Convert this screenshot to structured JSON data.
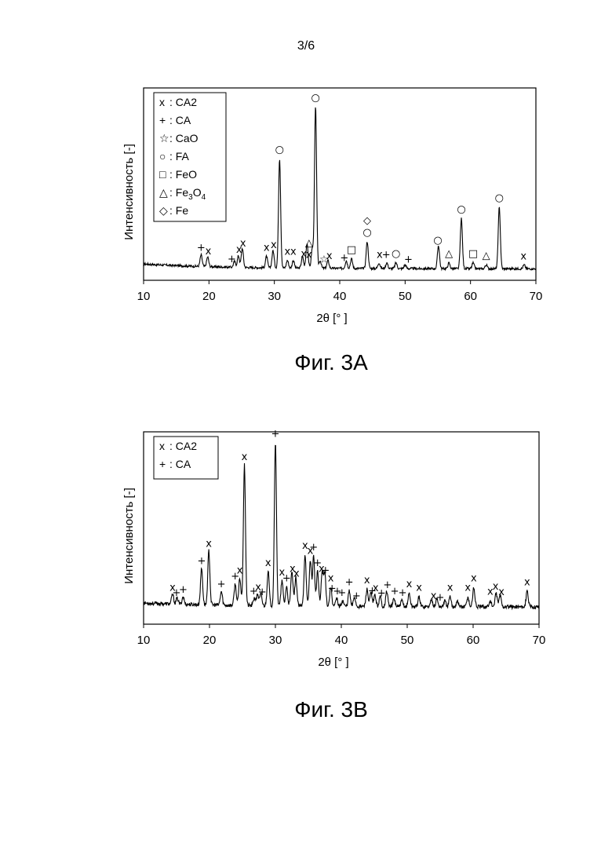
{
  "page": {
    "number": "3/6"
  },
  "figures": [
    {
      "caption": "Фиг. 3A"
    },
    {
      "caption": "Фиг. 3B"
    }
  ],
  "chart_data": [
    {
      "type": "line",
      "title": "",
      "xlabel": "2θ [°  ]",
      "ylabel": "Интенсивность  [-]",
      "xlim": [
        10,
        70
      ],
      "ylim": [
        0,
        100
      ],
      "xticks": [
        10,
        20,
        30,
        40,
        50,
        60,
        70
      ],
      "legend_position": "top-left",
      "legend": [
        {
          "symbol": "x",
          "label": "CA2"
        },
        {
          "symbol": "+",
          "label": "CA"
        },
        {
          "symbol": "☆",
          "label": "CaO"
        },
        {
          "symbol": "○",
          "label": "FA"
        },
        {
          "symbol": "□",
          "label": "FeO"
        },
        {
          "symbol": "△",
          "label": "Fe3O4",
          "label_main": "Fe",
          "sub1": "3",
          "mid": "O",
          "sub2": "4"
        },
        {
          "symbol": "◇",
          "label": "Fe"
        }
      ],
      "baseline": 6,
      "peaks": [
        [
          18.8,
          6
        ],
        [
          19.8,
          5
        ],
        [
          23.9,
          3
        ],
        [
          24.5,
          6
        ],
        [
          25.1,
          10
        ],
        [
          28.8,
          6
        ],
        [
          29.8,
          9
        ],
        [
          30.8,
          57
        ],
        [
          32.0,
          4
        ],
        [
          32.9,
          4
        ],
        [
          34.3,
          6
        ],
        [
          35.0,
          13
        ],
        [
          35.8,
          10
        ],
        [
          36.3,
          84
        ],
        [
          37.0,
          4
        ],
        [
          38.2,
          4
        ],
        [
          41.0,
          4
        ],
        [
          41.8,
          5
        ],
        [
          44.2,
          14
        ],
        [
          46.0,
          3
        ],
        [
          47.2,
          3
        ],
        [
          48.6,
          3
        ],
        [
          50.0,
          2
        ],
        [
          55.1,
          12
        ],
        [
          56.7,
          3
        ],
        [
          58.6,
          26
        ],
        [
          60.4,
          3
        ],
        [
          62.4,
          2
        ],
        [
          64.4,
          32
        ],
        [
          68.2,
          2
        ]
      ],
      "annotations": [
        {
          "x": 18.8,
          "symbol": "+"
        },
        {
          "x": 19.9,
          "symbol": "x"
        },
        {
          "x": 23.5,
          "symbol": "+"
        },
        {
          "x": 24.6,
          "symbol": "x"
        },
        {
          "x": 25.2,
          "symbol": "x"
        },
        {
          "x": 28.8,
          "symbol": "x"
        },
        {
          "x": 29.9,
          "symbol": "x"
        },
        {
          "x": 30.8,
          "symbol": "○"
        },
        {
          "x": 32.0,
          "symbol": "x"
        },
        {
          "x": 32.9,
          "symbol": "x"
        },
        {
          "x": 34.5,
          "symbol": "x"
        },
        {
          "x": 35.3,
          "symbol": "x"
        },
        {
          "x": 35.3,
          "symbol": "△"
        },
        {
          "x": 36.3,
          "symbol": "○"
        },
        {
          "x": 37.6,
          "symbol": "☆"
        },
        {
          "x": 38.4,
          "symbol": "x"
        },
        {
          "x": 40.7,
          "symbol": "+"
        },
        {
          "x": 41.8,
          "symbol": "□"
        },
        {
          "x": 44.2,
          "symbol": "○"
        },
        {
          "x": 44.2,
          "symbol": "◇"
        },
        {
          "x": 46.1,
          "symbol": "x"
        },
        {
          "x": 47.1,
          "symbol": "+"
        },
        {
          "x": 48.6,
          "symbol": "○"
        },
        {
          "x": 50.5,
          "symbol": "+"
        },
        {
          "x": 55.0,
          "symbol": "○"
        },
        {
          "x": 56.7,
          "symbol": "△"
        },
        {
          "x": 58.6,
          "symbol": "○"
        },
        {
          "x": 60.4,
          "symbol": "□"
        },
        {
          "x": 62.4,
          "symbol": "△"
        },
        {
          "x": 64.4,
          "symbol": "○"
        },
        {
          "x": 68.1,
          "symbol": "x"
        }
      ]
    },
    {
      "type": "line",
      "title": "",
      "xlabel": "2θ [°  ]",
      "ylabel": "Интенсивность  [-]",
      "xlim": [
        10,
        70
      ],
      "ylim": [
        0,
        100
      ],
      "xticks": [
        10,
        20,
        30,
        40,
        50,
        60,
        70
      ],
      "legend_position": "top-left",
      "legend": [
        {
          "symbol": "x",
          "label": "CA2"
        },
        {
          "symbol": "+",
          "label": "CA"
        }
      ],
      "baseline": 9,
      "peaks": [
        [
          14.4,
          5
        ],
        [
          15.1,
          3
        ],
        [
          16.0,
          4
        ],
        [
          18.8,
          19
        ],
        [
          19.9,
          28
        ],
        [
          21.8,
          7
        ],
        [
          23.9,
          11
        ],
        [
          24.6,
          14
        ],
        [
          25.3,
          73
        ],
        [
          26.8,
          4
        ],
        [
          27.3,
          6
        ],
        [
          27.8,
          6
        ],
        [
          28.9,
          18
        ],
        [
          30.0,
          85
        ],
        [
          31.0,
          13
        ],
        [
          31.7,
          10
        ],
        [
          32.5,
          18
        ],
        [
          33.1,
          15
        ],
        [
          34.5,
          27
        ],
        [
          35.3,
          24
        ],
        [
          35.8,
          26
        ],
        [
          36.4,
          18
        ],
        [
          37.1,
          18
        ],
        [
          37.5,
          17
        ],
        [
          38.4,
          10
        ],
        [
          39.3,
          4
        ],
        [
          40.2,
          3
        ],
        [
          41.2,
          8
        ],
        [
          42.0,
          5
        ],
        [
          43.9,
          9
        ],
        [
          44.5,
          7
        ],
        [
          45.1,
          6
        ],
        [
          45.9,
          5
        ],
        [
          46.9,
          8
        ],
        [
          48.0,
          4
        ],
        [
          49.2,
          3
        ],
        [
          50.3,
          7
        ],
        [
          51.8,
          5
        ],
        [
          53.7,
          4
        ],
        [
          54.5,
          4
        ],
        [
          55.7,
          3
        ],
        [
          56.5,
          5
        ],
        [
          57.6,
          3
        ],
        [
          59.2,
          5
        ],
        [
          60.1,
          10
        ],
        [
          62.6,
          3
        ],
        [
          63.5,
          7
        ],
        [
          64.1,
          6
        ],
        [
          68.2,
          8
        ]
      ],
      "annotations": [
        {
          "x": 14.4,
          "symbol": "x"
        },
        {
          "x": 15.0,
          "symbol": "+"
        },
        {
          "x": 16.0,
          "symbol": "+"
        },
        {
          "x": 18.8,
          "symbol": "+"
        },
        {
          "x": 19.9,
          "symbol": "x"
        },
        {
          "x": 21.8,
          "symbol": "+"
        },
        {
          "x": 23.9,
          "symbol": "+"
        },
        {
          "x": 24.6,
          "symbol": "x"
        },
        {
          "x": 25.3,
          "symbol": "x"
        },
        {
          "x": 26.7,
          "symbol": "+"
        },
        {
          "x": 27.4,
          "symbol": "x"
        },
        {
          "x": 28.0,
          "symbol": "+"
        },
        {
          "x": 28.9,
          "symbol": "x"
        },
        {
          "x": 30.0,
          "symbol": "+"
        },
        {
          "x": 31.0,
          "symbol": "x"
        },
        {
          "x": 31.7,
          "symbol": "+"
        },
        {
          "x": 32.6,
          "symbol": "x"
        },
        {
          "x": 33.2,
          "symbol": "x"
        },
        {
          "x": 34.5,
          "symbol": "x"
        },
        {
          "x": 35.3,
          "symbol": "x"
        },
        {
          "x": 35.8,
          "symbol": "+"
        },
        {
          "x": 36.4,
          "symbol": "+"
        },
        {
          "x": 37.0,
          "symbol": "x"
        },
        {
          "x": 37.6,
          "symbol": "+"
        },
        {
          "x": 38.4,
          "symbol": "x"
        },
        {
          "x": 38.6,
          "symbol": "+"
        },
        {
          "x": 39.4,
          "symbol": "+"
        },
        {
          "x": 40.1,
          "symbol": "+"
        },
        {
          "x": 41.2,
          "symbol": "+"
        },
        {
          "x": 42.3,
          "symbol": "+"
        },
        {
          "x": 43.9,
          "symbol": "x"
        },
        {
          "x": 44.7,
          "symbol": "+"
        },
        {
          "x": 45.2,
          "symbol": "x"
        },
        {
          "x": 46.1,
          "symbol": "+"
        },
        {
          "x": 47.0,
          "symbol": "+"
        },
        {
          "x": 48.1,
          "symbol": "+"
        },
        {
          "x": 49.3,
          "symbol": "+"
        },
        {
          "x": 50.3,
          "symbol": "x"
        },
        {
          "x": 51.8,
          "symbol": "x"
        },
        {
          "x": 54.0,
          "symbol": "x"
        },
        {
          "x": 55.0,
          "symbol": "+"
        },
        {
          "x": 56.5,
          "symbol": "x"
        },
        {
          "x": 59.2,
          "symbol": "x"
        },
        {
          "x": 60.1,
          "symbol": "x"
        },
        {
          "x": 62.6,
          "symbol": "x"
        },
        {
          "x": 63.4,
          "symbol": "x"
        },
        {
          "x": 64.3,
          "symbol": "x"
        },
        {
          "x": 68.2,
          "symbol": "x"
        }
      ]
    }
  ]
}
